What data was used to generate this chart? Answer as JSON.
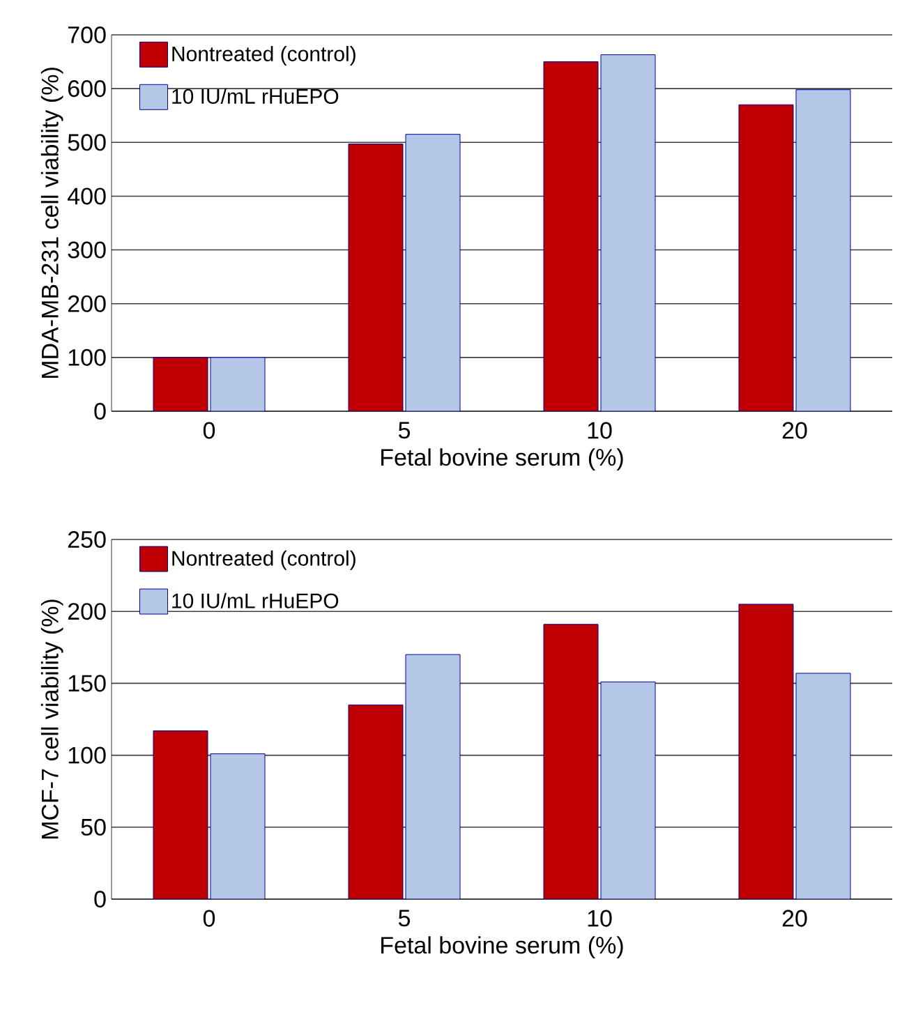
{
  "chart_data": [
    {
      "type": "bar",
      "xlabel": "Fetal bovine serum (%)",
      "ylabel": "MDA-MB-231 cell viability (%)",
      "categories": [
        "0",
        "5",
        "10",
        "20"
      ],
      "series": [
        {
          "name": "Nontreated (control)",
          "color": "#c00000",
          "values": [
            100,
            497,
            650,
            570
          ]
        },
        {
          "name": "10 IU/mL rHuEPO",
          "color": "#b4c7e7",
          "values": [
            100,
            515,
            663,
            598
          ]
        }
      ],
      "ylim": [
        0,
        700
      ],
      "yticks": [
        0,
        100,
        200,
        300,
        400,
        500,
        600,
        700
      ],
      "grid": "y",
      "legend": "top left"
    },
    {
      "type": "bar",
      "xlabel": "Fetal bovine serum (%)",
      "ylabel": "MCF-7 cell viability (%)",
      "categories": [
        "0",
        "5",
        "10",
        "20"
      ],
      "series": [
        {
          "name": "Nontreated (control)",
          "color": "#c00000",
          "values": [
            117,
            135,
            191,
            205
          ]
        },
        {
          "name": "10 IU/mL rHuEPO",
          "color": "#b4c7e7",
          "values": [
            101,
            170,
            151,
            157
          ]
        }
      ],
      "ylim": [
        0,
        250
      ],
      "yticks": [
        0,
        50,
        100,
        150,
        200,
        250
      ],
      "grid": "y",
      "legend": "top left"
    }
  ]
}
